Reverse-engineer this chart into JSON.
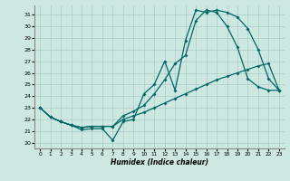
{
  "xlabel": "Humidex (Indice chaleur)",
  "bg_color": "#cce8e0",
  "grid_color": "#aacccc",
  "line_color": "#006666",
  "xlim": [
    -0.5,
    23.5
  ],
  "ylim": [
    19.5,
    31.8
  ],
  "xticks": [
    0,
    1,
    2,
    3,
    4,
    5,
    6,
    7,
    8,
    9,
    10,
    11,
    12,
    13,
    14,
    15,
    16,
    17,
    18,
    19,
    20,
    21,
    22,
    23
  ],
  "yticks": [
    20,
    21,
    22,
    23,
    24,
    25,
    26,
    27,
    28,
    29,
    30,
    31
  ],
  "line1_x": [
    0,
    1,
    2,
    3,
    4,
    5,
    6,
    7,
    8,
    9,
    10,
    11,
    12,
    13,
    14,
    15,
    16,
    17,
    18,
    19,
    20,
    21,
    22,
    23
  ],
  "line1_y": [
    23.0,
    22.2,
    21.8,
    21.5,
    21.1,
    21.2,
    21.2,
    20.2,
    21.8,
    22.0,
    24.2,
    25.0,
    27.0,
    24.5,
    28.8,
    31.4,
    31.2,
    31.4,
    31.2,
    30.8,
    29.8,
    28.0,
    25.5,
    24.5
  ],
  "line2_x": [
    0,
    1,
    2,
    3,
    4,
    5,
    6,
    7,
    8,
    9,
    10,
    11,
    12,
    13,
    14,
    15,
    16,
    17,
    18,
    19,
    20,
    21,
    22,
    23
  ],
  "line2_y": [
    23.0,
    22.2,
    21.8,
    21.5,
    21.3,
    21.4,
    21.4,
    21.4,
    22.0,
    22.3,
    22.6,
    23.0,
    23.4,
    23.8,
    24.2,
    24.6,
    25.0,
    25.4,
    25.7,
    26.0,
    26.3,
    26.6,
    26.8,
    24.5
  ],
  "line3_x": [
    0,
    1,
    2,
    3,
    4,
    5,
    6,
    7,
    8,
    9,
    10,
    11,
    12,
    13,
    14,
    15,
    16,
    17,
    18,
    19,
    20,
    21,
    22,
    23
  ],
  "line3_y": [
    23.0,
    22.2,
    21.8,
    21.5,
    21.3,
    21.4,
    21.4,
    21.4,
    22.3,
    22.7,
    23.2,
    24.2,
    25.4,
    26.8,
    27.5,
    30.5,
    31.4,
    31.2,
    30.0,
    28.2,
    25.5,
    24.8,
    24.5,
    24.5
  ]
}
